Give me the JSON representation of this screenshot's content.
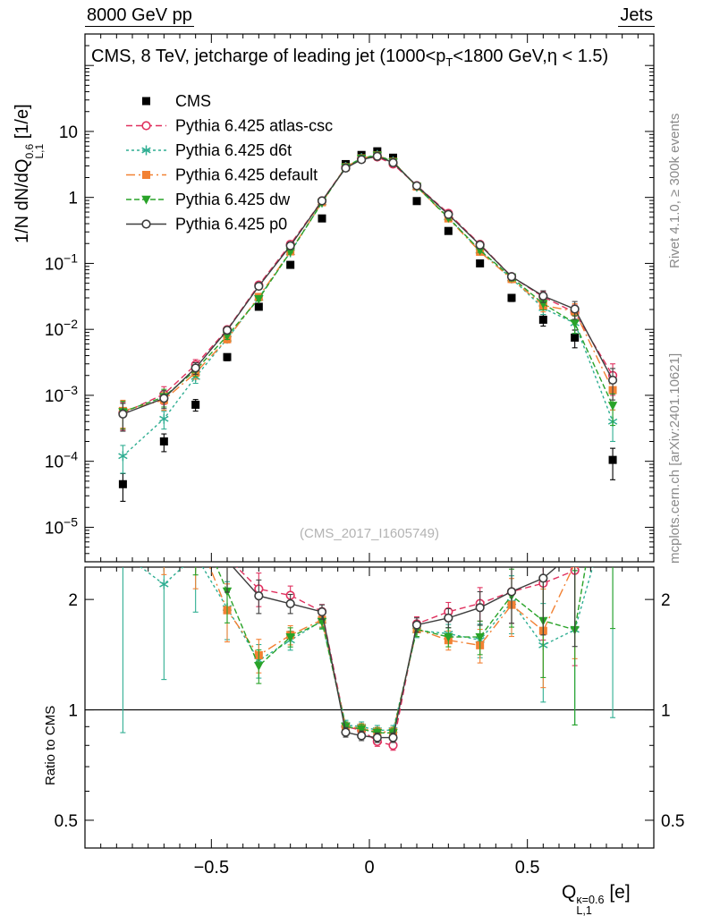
{
  "header": {
    "left": "8000 GeV pp",
    "right": "Jets"
  },
  "plot": {
    "title_p1": "CMS, 8 TeV, jetcharge of leading jet (1000<p",
    "title_sub": "T",
    "title_p2": "<1800 GeV,η < 1.5)",
    "watermark": "(CMS_2017_I1605749)",
    "ylabel_prefix": "1/N dN/dQ",
    "ylabel_sup": "0.6",
    "ylabel_sub": "L,1",
    "ylabel_suffix": " [1/e]",
    "xlabel_prefix": "Q",
    "xlabel_sup": "κ=0.6",
    "xlabel_sub": "L,1",
    "xlabel_suffix": " [e]"
  },
  "side_notes": {
    "top": "Rivet 4.1.0, ≥ 300k events",
    "bottom": "mcplots.cern.ch [arXiv:2401.10621]"
  },
  "chart_data": {
    "type": "line",
    "title": "CMS, 8 TeV, jetcharge of leading jet (1000<pT<1800 GeV, η < 1.5)",
    "xlabel": "Q^{κ=0.6}_{L,1} [e]",
    "ylabel": "1/N dN/dQ^{0.6}_{L,1} [1/e]",
    "yscale": "log",
    "grid": false,
    "legend_position": "top-left",
    "xlim": [
      -0.9,
      0.9
    ],
    "ylim_main": [
      3e-06,
      300
    ],
    "x": [
      -0.78,
      -0.65,
      -0.55,
      -0.45,
      -0.35,
      -0.25,
      -0.15,
      -0.075,
      -0.025,
      0.025,
      0.075,
      0.15,
      0.25,
      0.35,
      0.45,
      0.55,
      0.65,
      0.77
    ],
    "rel_err": [
      0.45,
      0.3,
      0.2,
      0.12,
      0.07,
      0.04,
      0.03,
      0.02,
      0.02,
      0.02,
      0.02,
      0.03,
      0.04,
      0.07,
      0.12,
      0.2,
      0.3,
      0.5
    ],
    "series": [
      {
        "name": "CMS",
        "color": "#000000",
        "marker": "square-filled",
        "line": "none",
        "dash": "",
        "values": [
          4.5e-05,
          0.0002,
          0.00072,
          0.0038,
          0.022,
          0.095,
          0.48,
          3.2,
          4.4,
          5.0,
          4.0,
          0.88,
          0.31,
          0.1,
          0.03,
          0.014,
          0.0075,
          0.000105
        ]
      },
      {
        "name": "Pythia 6.425 atlas-csc",
        "color": "#e0315f",
        "marker": "circle-open",
        "line": "line",
        "dash": "7,4",
        "values": [
          0.00054,
          0.00104,
          0.0029,
          0.0099,
          0.047,
          0.195,
          0.89,
          2.88,
          3.87,
          4.1,
          3.2,
          1.51,
          0.574,
          0.195,
          0.063,
          0.031,
          0.018,
          0.002
        ]
      },
      {
        "name": "Pythia 6.425 d6t",
        "color": "#2fae92",
        "marker": "asterisk",
        "line": "line",
        "dash": "3,3",
        "values": [
          0.00012,
          0.00044,
          0.0019,
          0.0072,
          0.03,
          0.147,
          0.84,
          2.91,
          3.96,
          4.4,
          3.52,
          1.45,
          0.5,
          0.155,
          0.059,
          0.021,
          0.0124,
          0.0004
        ]
      },
      {
        "name": "Pythia 6.425 default",
        "color": "#f28133",
        "marker": "square-filled",
        "line": "line",
        "dash": "10,4,2,4",
        "values": [
          0.00058,
          0.00085,
          0.0022,
          0.0071,
          0.031,
          0.152,
          0.845,
          2.88,
          3.92,
          4.35,
          3.48,
          1.46,
          0.48,
          0.15,
          0.058,
          0.023,
          0.0188,
          0.0012
        ]
      },
      {
        "name": "Pythia 6.425 dw",
        "color": "#29a329",
        "marker": "triangle-down-filled",
        "line": "line",
        "dash": "6,3",
        "values": [
          0.00056,
          0.00095,
          0.0024,
          0.008,
          0.029,
          0.15,
          0.835,
          2.88,
          3.9,
          4.33,
          3.46,
          1.46,
          0.49,
          0.158,
          0.0615,
          0.0245,
          0.0124,
          0.0007
        ]
      },
      {
        "name": "Pythia 6.425 p0",
        "color": "#3d3d3d",
        "marker": "circle-open",
        "line": "line",
        "dash": "",
        "values": [
          0.00052,
          0.0009,
          0.0026,
          0.0097,
          0.045,
          0.185,
          0.888,
          2.78,
          3.74,
          4.2,
          3.36,
          1.5,
          0.552,
          0.19,
          0.063,
          0.032,
          0.0203,
          0.0017
        ]
      }
    ],
    "ratio_panel": {
      "ylabel": "Ratio to CMS",
      "reference": "CMS",
      "yscale": "log",
      "ylim": [
        0.42,
        2.45
      ],
      "unity_line": 1
    },
    "main_yticks": [
      {
        "v": 10,
        "base": "10",
        "exp": ""
      },
      {
        "v": 1,
        "base": "1",
        "exp": ""
      },
      {
        "v": 0.1,
        "base": "10",
        "exp": "−1"
      },
      {
        "v": 0.01,
        "base": "10",
        "exp": "−2"
      },
      {
        "v": 0.001,
        "base": "10",
        "exp": "−3"
      },
      {
        "v": 0.0001,
        "base": "10",
        "exp": "−4"
      },
      {
        "v": 1e-05,
        "base": "10",
        "exp": "−5"
      }
    ],
    "ratio_yticks": [
      {
        "v": 0.5,
        "t": "0.5"
      },
      {
        "v": 1,
        "t": "1"
      },
      {
        "v": 2,
        "t": "2"
      }
    ],
    "xticks": [
      {
        "v": -0.5,
        "t": "−0.5"
      },
      {
        "v": 0,
        "t": "0"
      },
      {
        "v": 0.5,
        "t": "0.5"
      }
    ]
  }
}
